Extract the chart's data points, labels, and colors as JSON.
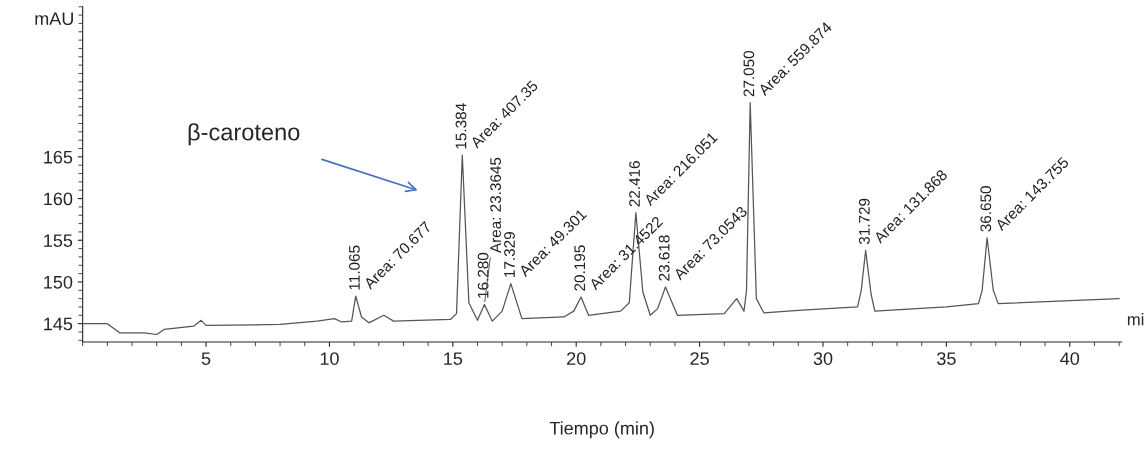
{
  "chart_data": {
    "type": "line",
    "xlabel": "Tiempo (min)",
    "ylabel": "mAU",
    "color": "#555555",
    "line_style": "solid",
    "marker": "none",
    "grid": false,
    "legend": false,
    "xlim": [
      0,
      42.1
    ],
    "ylim": [
      142.8,
      183
    ],
    "xticks": [
      5,
      10,
      15,
      20,
      25,
      30,
      35,
      40
    ],
    "yticks": [
      145,
      150,
      155,
      160,
      165
    ],
    "x": [
      0,
      1,
      1.5,
      2.5,
      3,
      3.3,
      4.5,
      4.8,
      5,
      8,
      9.5,
      10.2,
      10.5,
      10.9,
      11.065,
      11.3,
      11.6,
      12.2,
      12.6,
      14.9,
      15.15,
      15.384,
      15.65,
      16.0,
      16.28,
      16.6,
      17.0,
      17.35,
      17.8,
      19.5,
      19.9,
      20.195,
      20.5,
      21.8,
      22.15,
      22.416,
      22.7,
      23.0,
      23.3,
      23.618,
      24.1,
      26.0,
      26.5,
      26.8,
      26.9,
      27.05,
      27.3,
      27.6,
      29,
      31.4,
      31.55,
      31.729,
      31.95,
      32.1,
      35,
      36.3,
      36.45,
      36.65,
      36.9,
      37.1,
      42
    ],
    "values": [
      145,
      145,
      143.9,
      143.9,
      143.7,
      144.3,
      144.7,
      145.4,
      144.8,
      144.9,
      145.3,
      145.6,
      145.2,
      145.3,
      148.3,
      145.8,
      145.1,
      146.0,
      145.3,
      145.5,
      146.2,
      165.2,
      147.5,
      145.4,
      147.3,
      145.3,
      146.5,
      149.8,
      145.6,
      145.8,
      146.5,
      148.2,
      146.0,
      146.5,
      147.5,
      158.3,
      148.8,
      146.0,
      146.8,
      149.4,
      146.0,
      146.2,
      148.0,
      146.5,
      149,
      171.5,
      148,
      146.3,
      146.6,
      147.0,
      149,
      153.8,
      148.5,
      146.5,
      147.0,
      147.4,
      149,
      155.3,
      149,
      147.4,
      148.0
    ],
    "annotations": [
      {
        "text": "11.065",
        "x": 11.065,
        "y": 148.3
      },
      {
        "text": "Area: 70.677",
        "x": 11.065,
        "y": 148.3
      },
      {
        "text": "15.384",
        "x": 15.384,
        "y": 165.2
      },
      {
        "text": "Area: 407.35",
        "x": 15.384,
        "y": 165.2
      },
      {
        "text": "16.280",
        "x": 16.28,
        "y": 147.3
      },
      {
        "text": "Area: 23.3645",
        "x": 16.28,
        "y": 147.3
      },
      {
        "text": "17.329",
        "x": 17.35,
        "y": 149.8
      },
      {
        "text": "Area: 49.301",
        "x": 17.35,
        "y": 149.8
      },
      {
        "text": "20.195",
        "x": 20.195,
        "y": 148.2
      },
      {
        "text": "Area: 31.4522",
        "x": 20.195,
        "y": 148.2
      },
      {
        "text": "22.416",
        "x": 22.416,
        "y": 158.3
      },
      {
        "text": "Area: 216.051",
        "x": 22.416,
        "y": 158.3
      },
      {
        "text": "23.618",
        "x": 23.618,
        "y": 149.4
      },
      {
        "text": "Area: 73.0543",
        "x": 23.618,
        "y": 149.4
      },
      {
        "text": "27.050",
        "x": 27.05,
        "y": 171.5
      },
      {
        "text": "Area: 559.874",
        "x": 27.05,
        "y": 171.5
      },
      {
        "text": "31.729",
        "x": 31.729,
        "y": 153.8
      },
      {
        "text": "Area: 131.868",
        "x": 31.729,
        "y": 153.8
      },
      {
        "text": "36.650",
        "x": 36.65,
        "y": 155.3
      },
      {
        "text": "Area: 143.755",
        "x": 36.65,
        "y": 155.3
      },
      "β-caroteno",
      "mi"
    ]
  }
}
